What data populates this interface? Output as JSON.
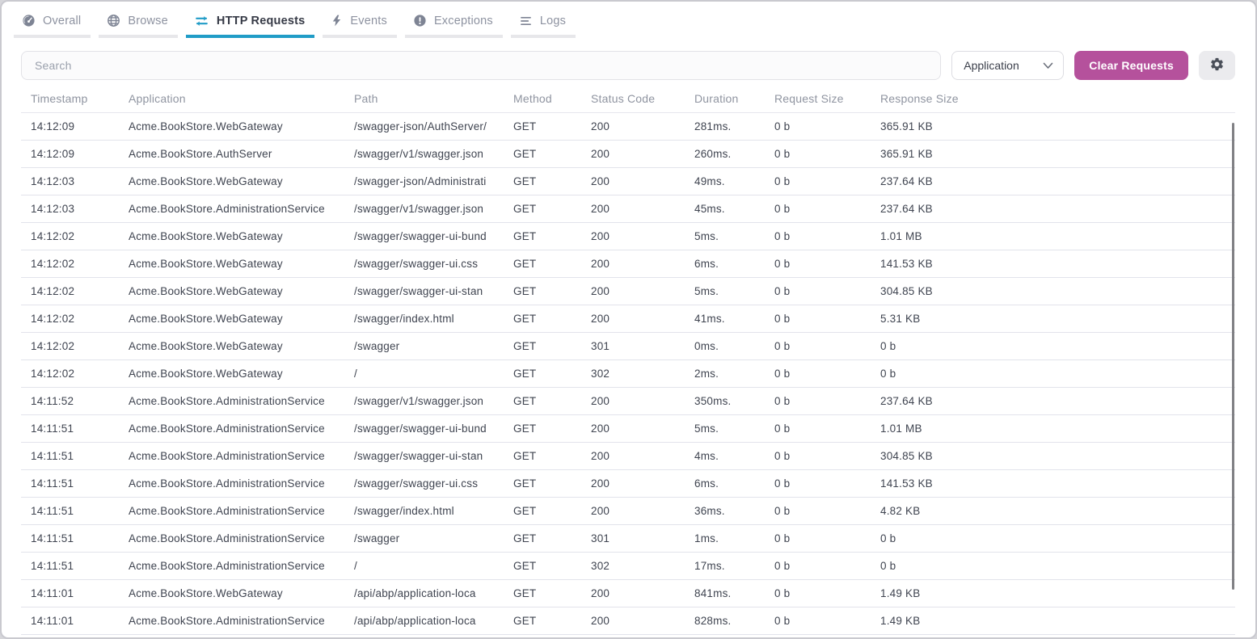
{
  "tabs": [
    {
      "label": "Overall",
      "icon": "gauge-icon",
      "active": false
    },
    {
      "label": "Browse",
      "icon": "globe-icon",
      "active": false
    },
    {
      "label": "HTTP Requests",
      "icon": "swap-arrows-icon",
      "active": true
    },
    {
      "label": "Events",
      "icon": "lightning-icon",
      "active": false
    },
    {
      "label": "Exceptions",
      "icon": "exclamation-icon",
      "active": false
    },
    {
      "label": "Logs",
      "icon": "lines-icon",
      "active": false
    }
  ],
  "toolbar": {
    "search_placeholder": "Search",
    "application_filter_label": "Application",
    "application_filter_icon": "chevron-down-icon",
    "clear_button_label": "Clear Requests",
    "settings_icon": "gear-icon"
  },
  "colors": {
    "accent_teal": "#209cc7",
    "accent_magenta": "#b5519c",
    "tab_inactive": "#8d92a0",
    "text_dark": "#3f4450",
    "header_gray": "#8f94a0",
    "divider": "#e2e3eb"
  },
  "table": {
    "columns": [
      "Timestamp",
      "Application",
      "Path",
      "Method",
      "Status Code",
      "Duration",
      "Request Size",
      "Response Size"
    ],
    "rows": [
      {
        "timestamp": "14:12:09",
        "application": "Acme.BookStore.WebGateway",
        "path": "/swagger-json/AuthServer/",
        "method": "GET",
        "status_code": "200",
        "duration": "281ms.",
        "request_size": "0 b",
        "response_size": "365.91 KB"
      },
      {
        "timestamp": "14:12:09",
        "application": "Acme.BookStore.AuthServer",
        "path": "/swagger/v1/swagger.json",
        "method": "GET",
        "status_code": "200",
        "duration": "260ms.",
        "request_size": "0 b",
        "response_size": "365.91 KB"
      },
      {
        "timestamp": "14:12:03",
        "application": "Acme.BookStore.WebGateway",
        "path": "/swagger-json/Administrati",
        "method": "GET",
        "status_code": "200",
        "duration": "49ms.",
        "request_size": "0 b",
        "response_size": "237.64 KB"
      },
      {
        "timestamp": "14:12:03",
        "application": "Acme.BookStore.AdministrationService",
        "path": "/swagger/v1/swagger.json",
        "method": "GET",
        "status_code": "200",
        "duration": "45ms.",
        "request_size": "0 b",
        "response_size": "237.64 KB"
      },
      {
        "timestamp": "14:12:02",
        "application": "Acme.BookStore.WebGateway",
        "path": "/swagger/swagger-ui-bund",
        "method": "GET",
        "status_code": "200",
        "duration": "5ms.",
        "request_size": "0 b",
        "response_size": "1.01 MB"
      },
      {
        "timestamp": "14:12:02",
        "application": "Acme.BookStore.WebGateway",
        "path": "/swagger/swagger-ui.css",
        "method": "GET",
        "status_code": "200",
        "duration": "6ms.",
        "request_size": "0 b",
        "response_size": "141.53 KB"
      },
      {
        "timestamp": "14:12:02",
        "application": "Acme.BookStore.WebGateway",
        "path": "/swagger/swagger-ui-stan",
        "method": "GET",
        "status_code": "200",
        "duration": "5ms.",
        "request_size": "0 b",
        "response_size": "304.85 KB"
      },
      {
        "timestamp": "14:12:02",
        "application": "Acme.BookStore.WebGateway",
        "path": "/swagger/index.html",
        "method": "GET",
        "status_code": "200",
        "duration": "41ms.",
        "request_size": "0 b",
        "response_size": "5.31 KB"
      },
      {
        "timestamp": "14:12:02",
        "application": "Acme.BookStore.WebGateway",
        "path": "/swagger",
        "method": "GET",
        "status_code": "301",
        "duration": "0ms.",
        "request_size": "0 b",
        "response_size": "0 b"
      },
      {
        "timestamp": "14:12:02",
        "application": "Acme.BookStore.WebGateway",
        "path": "/",
        "method": "GET",
        "status_code": "302",
        "duration": "2ms.",
        "request_size": "0 b",
        "response_size": "0 b"
      },
      {
        "timestamp": "14:11:52",
        "application": "Acme.BookStore.AdministrationService",
        "path": "/swagger/v1/swagger.json",
        "method": "GET",
        "status_code": "200",
        "duration": "350ms.",
        "request_size": "0 b",
        "response_size": "237.64 KB"
      },
      {
        "timestamp": "14:11:51",
        "application": "Acme.BookStore.AdministrationService",
        "path": "/swagger/swagger-ui-bund",
        "method": "GET",
        "status_code": "200",
        "duration": "5ms.",
        "request_size": "0 b",
        "response_size": "1.01 MB"
      },
      {
        "timestamp": "14:11:51",
        "application": "Acme.BookStore.AdministrationService",
        "path": "/swagger/swagger-ui-stan",
        "method": "GET",
        "status_code": "200",
        "duration": "4ms.",
        "request_size": "0 b",
        "response_size": "304.85 KB"
      },
      {
        "timestamp": "14:11:51",
        "application": "Acme.BookStore.AdministrationService",
        "path": "/swagger/swagger-ui.css",
        "method": "GET",
        "status_code": "200",
        "duration": "6ms.",
        "request_size": "0 b",
        "response_size": "141.53 KB"
      },
      {
        "timestamp": "14:11:51",
        "application": "Acme.BookStore.AdministrationService",
        "path": "/swagger/index.html",
        "method": "GET",
        "status_code": "200",
        "duration": "36ms.",
        "request_size": "0 b",
        "response_size": "4.82 KB"
      },
      {
        "timestamp": "14:11:51",
        "application": "Acme.BookStore.AdministrationService",
        "path": "/swagger",
        "method": "GET",
        "status_code": "301",
        "duration": "1ms.",
        "request_size": "0 b",
        "response_size": "0 b"
      },
      {
        "timestamp": "14:11:51",
        "application": "Acme.BookStore.AdministrationService",
        "path": "/",
        "method": "GET",
        "status_code": "302",
        "duration": "17ms.",
        "request_size": "0 b",
        "response_size": "0 b"
      },
      {
        "timestamp": "14:11:01",
        "application": "Acme.BookStore.WebGateway",
        "path": "/api/abp/application-loca",
        "method": "GET",
        "status_code": "200",
        "duration": "841ms.",
        "request_size": "0 b",
        "response_size": "1.49 KB"
      },
      {
        "timestamp": "14:11:01",
        "application": "Acme.BookStore.AdministrationService",
        "path": "/api/abp/application-loca",
        "method": "GET",
        "status_code": "200",
        "duration": "828ms.",
        "request_size": "0 b",
        "response_size": "1.49 KB"
      }
    ]
  }
}
